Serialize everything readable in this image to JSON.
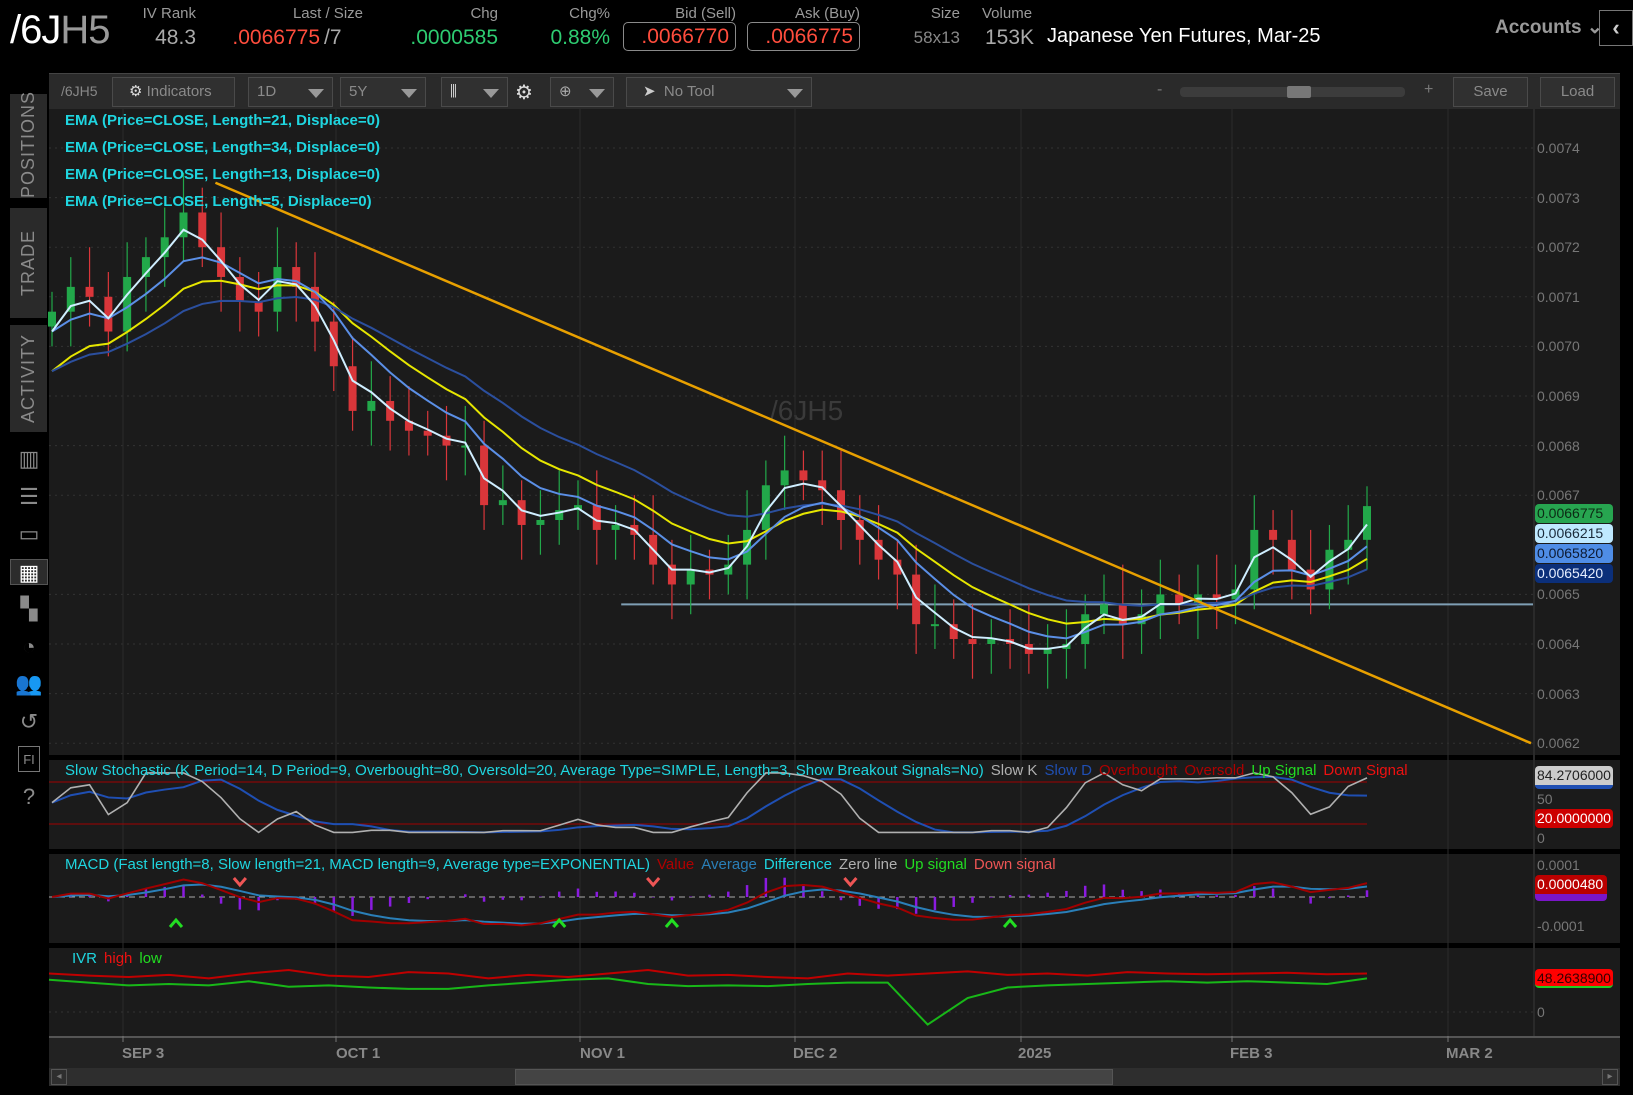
{
  "header": {
    "symbol_main": "/6J",
    "symbol_suffix": "H5",
    "iv_rank_label": "IV Rank",
    "iv_rank": "48.3",
    "last_size_label": "Last / Size",
    "last": ".0066775",
    "size_sep": "/7",
    "chg_label": "Chg",
    "chg": ".0000585",
    "chgpct_label": "Chg%",
    "chgpct": "0.88%",
    "bid_label": "Bid (Sell)",
    "bid": ".0066770",
    "ask_label": "Ask (Buy)",
    "ask": ".0066775",
    "size_label": "Size",
    "size": "58x13",
    "volume_label": "Volume",
    "volume": "153K",
    "description": "Japanese Yen Futures, Mar-25",
    "accounts": "Accounts",
    "colors": {
      "up": "#2ecc71",
      "down": "#ff4d3d"
    }
  },
  "sidebar": {
    "tabs": [
      "POSITIONS",
      "TRADE",
      "ACTIVITY"
    ],
    "icons": [
      "report-icon",
      "list-icon",
      "tv-icon",
      "chart-icon",
      "grid-icon",
      "clock-icon",
      "people-icon",
      "calendar-icon",
      "fi-icon",
      "help-icon"
    ],
    "icon_glyphs": [
      "▥",
      "☰",
      "▭",
      "▦",
      "▚",
      "◔",
      "👥",
      "↺",
      "FI",
      "?"
    ],
    "active_icon": "chart-icon"
  },
  "toolbar": {
    "symbol": "/6JH5",
    "indicators": "Indicators",
    "aggregation": "1D",
    "range": "5Y",
    "drawing_tool": "No Tool",
    "zoom_minus": "-",
    "zoom_plus": "+",
    "save": "Save",
    "load": "Load"
  },
  "price_panel": {
    "watermark": "/6JH5",
    "studies": [
      {
        "label": "EMA (Price=CLOSE, Length=21, Displace=0)",
        "length": 21,
        "color": "#e6e600"
      },
      {
        "label": "EMA (Price=CLOSE, Length=34, Displace=0)",
        "length": 34,
        "color": "#2b4f9e"
      },
      {
        "label": "EMA (Price=CLOSE, Length=13, Displace=0)",
        "length": 13,
        "color": "#5b8fe6"
      },
      {
        "label": "EMA (Price=CLOSE, Length=5, Displace=0)",
        "length": 5,
        "color": "#cfeeff"
      }
    ],
    "axis_ticks": [
      "0.0074",
      "0.0073",
      "0.0072",
      "0.0071",
      "0.0070",
      "0.0069",
      "0.0068",
      "0.0067",
      "0.0065",
      "0.0064",
      "0.0063",
      "0.0062"
    ],
    "badges": [
      {
        "value": "0.0066775",
        "bg": "#27a550",
        "fg": "#0c2a14"
      },
      {
        "value": "0.0066215",
        "bg": "#bfe9ff",
        "fg": "#1b2a3a"
      },
      {
        "value": "0.0065820",
        "bg": "#4f8de6",
        "fg": "#0d1a33"
      },
      {
        "value": "0.0065420",
        "bg": "#0b2f7a",
        "fg": "#e6eeff"
      }
    ],
    "trendline": {
      "start_index": 8.7,
      "start_price": 0.00733,
      "end_price": 0.0062,
      "color": "#e8a000"
    },
    "support_line": {
      "price": 0.00648,
      "start_index": 30.3,
      "color": "#7f9fb5"
    }
  },
  "chart_data": {
    "type": "candlestick",
    "ylim": [
      0.0062,
      0.0075
    ],
    "closes": [
      0.00707,
      0.00712,
      0.0071,
      0.00703,
      0.00714,
      0.00718,
      0.00722,
      0.00727,
      0.0072,
      0.00714,
      0.00709,
      0.00707,
      0.00716,
      0.00712,
      0.00705,
      0.00696,
      0.00687,
      0.00689,
      0.00685,
      0.00683,
      0.00682,
      0.0068,
      0.0068,
      0.00668,
      0.00669,
      0.00664,
      0.00665,
      0.00667,
      0.00668,
      0.00663,
      0.00664,
      0.00662,
      0.00656,
      0.00652,
      0.00655,
      0.00654,
      0.00656,
      0.00663,
      0.00672,
      0.00675,
      0.00673,
      0.00671,
      0.00665,
      0.00661,
      0.00657,
      0.00654,
      0.00644,
      0.00644,
      0.00641,
      0.0064,
      0.00641,
      0.0064,
      0.00638,
      0.00639,
      0.0064,
      0.00646,
      0.00648,
      0.00644,
      0.00646,
      0.0065,
      0.00648,
      0.0065,
      0.00649,
      0.00651,
      0.00663,
      0.00661,
      0.00655,
      0.00651,
      0.00659,
      0.00661,
      0.006678
    ],
    "x_ticks": [
      "SEP 3",
      "OCT 1",
      "NOV 1",
      "DEC 2",
      "2025",
      "FEB 3",
      "MAR 2"
    ]
  },
  "stochastic": {
    "title": "Slow Stochastic (K Period=14, D Period=9, Overbought=80, Oversold=20, Average Type=SIMPLE, Length=3, Show Breakout Signals=No)",
    "legend": [
      {
        "label": "Slow K",
        "color": "#b0b0b0"
      },
      {
        "label": "Slow D",
        "color": "#1f4fb3"
      },
      {
        "label": "Overbought",
        "color": "#b00000"
      },
      {
        "label": "Oversold",
        "color": "#b00000"
      },
      {
        "label": "Up Signal",
        "color": "#22dd22"
      },
      {
        "label": "Down Signal",
        "color": "#ee1111"
      }
    ],
    "overbought": 80,
    "oversold": 20,
    "axis": [
      "50",
      "0"
    ],
    "k_badge": "84.2706000",
    "oversold_badge": "20.0000000"
  },
  "macd": {
    "title": "MACD (Fast length=8, Slow length=21, MACD length=9, Average type=EXPONENTIAL)",
    "legend": [
      {
        "label": "Value",
        "color": "#b00000"
      },
      {
        "label": "Average",
        "color": "#2a7fb8"
      },
      {
        "label": "Difference",
        "color": "#1fd6e0"
      },
      {
        "label": "Zero line",
        "color": "#b0b0b0"
      },
      {
        "label": "Up signal",
        "color": "#22dd22"
      },
      {
        "label": "Down signal",
        "color": "#ee5555"
      }
    ],
    "axis": [
      "0.0001",
      "-0.0001"
    ],
    "value_badge": "0.0000480",
    "signals": [
      {
        "type": "up",
        "index": 6.6
      },
      {
        "type": "down",
        "index": 10
      },
      {
        "type": "up",
        "index": 27
      },
      {
        "type": "down",
        "index": 32
      },
      {
        "type": "up",
        "index": 33
      },
      {
        "type": "down",
        "index": 42.5
      },
      {
        "type": "up",
        "index": 51
      }
    ]
  },
  "ivr": {
    "legend": [
      {
        "label": "IVR",
        "color": "#1fd6e0"
      },
      {
        "label": "high",
        "color": "#ee1111"
      },
      {
        "label": "low",
        "color": "#22dd22"
      }
    ],
    "high": [
      55,
      52,
      50,
      53,
      48,
      55,
      60,
      52,
      50,
      57,
      55,
      48,
      53,
      50,
      55,
      60,
      52,
      53,
      50,
      48,
      55,
      52,
      55,
      58,
      53,
      55,
      52,
      57,
      55,
      54,
      55,
      56,
      54,
      55
    ],
    "low": [
      46,
      42,
      38,
      40,
      38,
      44,
      36,
      38,
      35,
      33,
      33,
      38,
      42,
      46,
      48,
      40,
      37,
      38,
      37,
      40,
      42,
      42,
      -18,
      20,
      35,
      38,
      40,
      42,
      44,
      42,
      44,
      42,
      40,
      48
    ],
    "axis": [
      "0"
    ],
    "badge": "48.2638900"
  }
}
